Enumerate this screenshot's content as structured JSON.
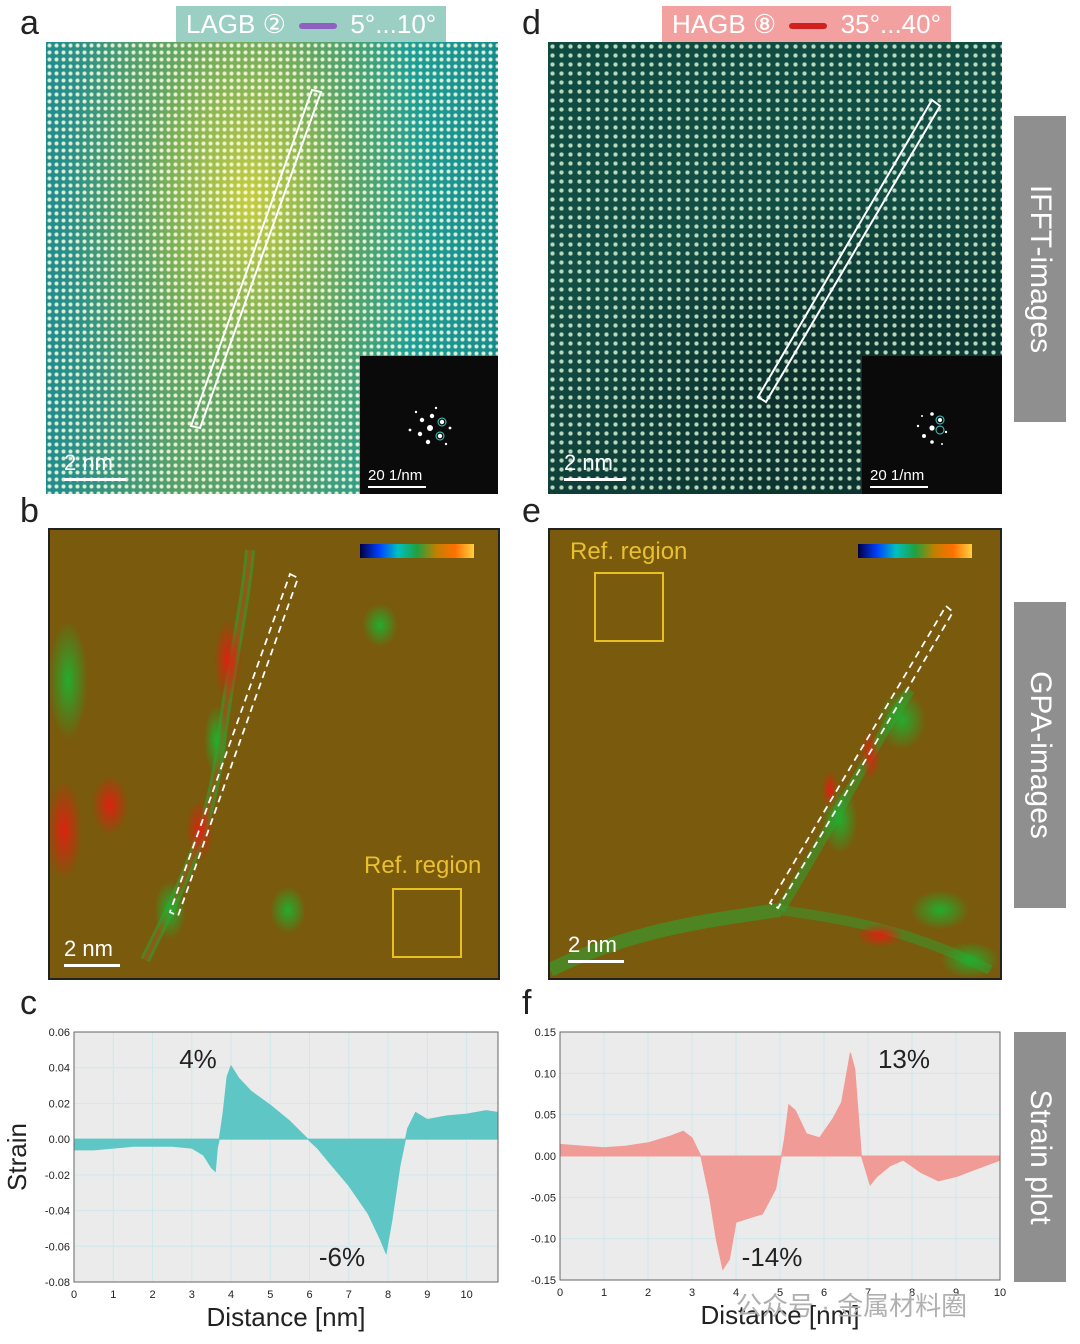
{
  "panels": {
    "a": {
      "letter": "a",
      "badge": "LAGB ② ",
      "range": " 5°...10°",
      "scale": "2 nm",
      "fft_scale": "20 1/nm"
    },
    "d": {
      "letter": "d",
      "badge": "HAGB ⑧ ",
      "range": " 35°...40°",
      "scale": "2 nm",
      "fft_scale": "20 1/nm"
    },
    "b": {
      "letter": "b",
      "scale": "2 nm",
      "ref": "Ref. region"
    },
    "e": {
      "letter": "e",
      "scale": "2 nm",
      "ref": "Ref. region"
    },
    "c": {
      "letter": "c"
    },
    "f": {
      "letter": "f"
    }
  },
  "side_labels": {
    "ifft": "IFFT-images",
    "gpa": "GPA-images",
    "strain": "Strain plot"
  },
  "colors": {
    "lagb_badge": "#9ccfc3",
    "lagb_line": "#9060c0",
    "hagb_badge": "#f2a0a0",
    "hagb_line": "#d02020",
    "teal_fill": "#5ec6c4",
    "red_fill": "#f19b96",
    "gpa_bg": "#7a5a0c",
    "ref_box": "#e8c020"
  },
  "watermark": "公众号 · 金属材料圈",
  "chart_data": [
    {
      "type": "area",
      "panel": "c",
      "xlabel": "Distance [nm]",
      "ylabel": "Strain",
      "xlim": [
        0,
        10.8
      ],
      "ylim": [
        -0.08,
        0.06
      ],
      "xticks": [
        "0",
        "1",
        "2",
        "3",
        "4",
        "5",
        "6",
        "7",
        "8",
        "9",
        "10"
      ],
      "yticks": [
        "0.06",
        "0.04",
        "0.02",
        "0.00",
        "-0.02",
        "-0.04",
        "-0.06",
        "-0.08"
      ],
      "grid": true,
      "x": [
        0,
        0.5,
        1,
        1.5,
        2,
        2.5,
        3,
        3.3,
        3.5,
        3.6,
        3.65,
        3.7,
        3.8,
        3.9,
        4.0,
        4.2,
        4.5,
        5,
        5.5,
        6,
        6.2,
        6.5,
        7,
        7.5,
        7.8,
        7.95,
        8.1,
        8.3,
        8.5,
        8.7,
        9,
        9.5,
        10,
        10.5,
        10.8
      ],
      "y": [
        -0.006,
        -0.006,
        -0.005,
        -0.004,
        -0.004,
        -0.004,
        -0.005,
        -0.009,
        -0.016,
        -0.018,
        -0.005,
        0.0,
        0.015,
        0.035,
        0.041,
        0.034,
        0.027,
        0.019,
        0.01,
        -0.001,
        -0.005,
        -0.013,
        -0.026,
        -0.042,
        -0.056,
        -0.064,
        -0.045,
        -0.015,
        0.006,
        0.015,
        0.011,
        0.013,
        0.014,
        0.016,
        0.015
      ],
      "annotations": [
        {
          "text": "4%"
        },
        {
          "text": "-6%"
        }
      ]
    },
    {
      "type": "area",
      "panel": "f",
      "xlabel": "Distance [nm]",
      "ylabel": "",
      "xlim": [
        0,
        10
      ],
      "ylim": [
        -0.15,
        0.15
      ],
      "xticks": [
        "0",
        "1",
        "2",
        "3",
        "4",
        "5",
        "6",
        "7",
        "8",
        "9",
        "10"
      ],
      "yticks": [
        "0.15",
        "0.10",
        "0.05",
        "0.00",
        "-0.05",
        "-0.10",
        "-0.15"
      ],
      "grid": true,
      "x": [
        0,
        0.5,
        1,
        1.5,
        2,
        2.5,
        2.8,
        3.0,
        3.2,
        3.4,
        3.55,
        3.7,
        3.85,
        4.0,
        4.3,
        4.6,
        4.9,
        5.1,
        5.2,
        5.35,
        5.6,
        5.9,
        6.2,
        6.4,
        6.6,
        6.7,
        6.85,
        7.05,
        7.2,
        7.5,
        7.8,
        8.2,
        8.6,
        9.0,
        9.5,
        10.0
      ],
      "y": [
        0.014,
        0.012,
        0.01,
        0.012,
        0.016,
        0.024,
        0.03,
        0.022,
        0.0,
        -0.05,
        -0.1,
        -0.137,
        -0.125,
        -0.08,
        -0.075,
        -0.07,
        -0.04,
        0.02,
        0.062,
        0.055,
        0.027,
        0.022,
        0.045,
        0.065,
        0.125,
        0.105,
        0.0,
        -0.035,
        -0.025,
        -0.012,
        -0.005,
        -0.02,
        -0.03,
        -0.025,
        -0.015,
        -0.005
      ],
      "annotations": [
        {
          "text": "13%"
        },
        {
          "text": "-14%"
        }
      ]
    }
  ]
}
